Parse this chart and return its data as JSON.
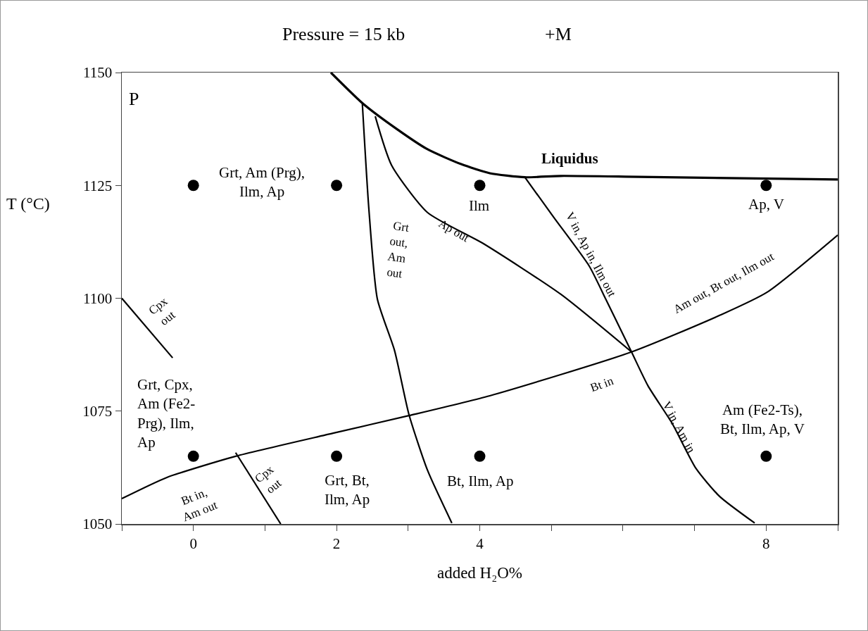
{
  "chart_data": {
    "type": "scatter",
    "title": "Pressure = 15 kb",
    "subtitle": "+M",
    "xlabel": "added H₂O%",
    "ylabel": "T (°C)",
    "xlim": [
      -1,
      9
    ],
    "xticks": [
      {
        "value": -1,
        "label": null
      },
      0,
      {
        "value": 1,
        "label": null
      },
      2,
      {
        "value": 3,
        "label": null
      },
      4,
      {
        "value": 5,
        "label": null
      },
      {
        "value": 6,
        "label": null
      },
      {
        "value": 7,
        "label": null
      },
      8,
      {
        "value": 9,
        "label": null
      }
    ],
    "ylim": [
      1050,
      1150
    ],
    "yticks": [
      1050,
      1075,
      1100,
      1125,
      1150
    ],
    "grid": false,
    "series": [
      {
        "type": "scatter",
        "marker": "circle",
        "color": "#000000",
        "x": [
          0,
          2,
          4,
          8,
          0,
          2,
          4,
          8
        ],
        "values": [
          1125,
          1125,
          1125,
          1125,
          1065,
          1065,
          1065,
          1065
        ]
      },
      {
        "type": "line",
        "marker": "none",
        "line_style": "solid",
        "color": "#000000",
        "x": [
          1.92,
          2.37,
          2.84,
          3.27,
          3.74,
          4.14,
          4.63,
          5.13,
          6.22,
          9
        ],
        "values": [
          1150,
          1143.1,
          1137.5,
          1133.0,
          1129.7,
          1127.7,
          1126.8,
          1127.1,
          1126.9,
          1126.3
        ]
      },
      {
        "type": "line",
        "marker": "none",
        "line_style": "solid",
        "color": "#000000",
        "x": [
          2.36,
          2.45,
          2.57,
          2.81,
          3.01,
          3.27,
          3.61
        ],
        "values": [
          1143.1,
          1120,
          1099.8,
          1088.4,
          1074.3,
          1061.9,
          1050.2
        ]
      },
      {
        "type": "line",
        "marker": "none",
        "line_style": "solid",
        "color": "#000000",
        "x": [
          2.54,
          2.77,
          3.27,
          4.04,
          5.13,
          6.12
        ],
        "values": [
          1140.3,
          1129.4,
          1119,
          1112.2,
          1100.9,
          1088.1
        ]
      },
      {
        "type": "line",
        "marker": "none",
        "line_style": "solid",
        "color": "#000000",
        "x": [
          4.63,
          5.03,
          5.53,
          5.76,
          6.12,
          6.35,
          6.69,
          7.02,
          7.35,
          7.84
        ],
        "values": [
          1126.8,
          1118,
          1107.1,
          1099.8,
          1088.1,
          1080.6,
          1072.2,
          1062.3,
          1056.1,
          1050.2
        ]
      },
      {
        "type": "line",
        "marker": "none",
        "line_style": "solid",
        "color": "#000000",
        "x": [
          -1,
          -0.37,
          0.59,
          1.95,
          3.01,
          4.14,
          6.12,
          7.35,
          8.01,
          9
        ],
        "values": [
          1055.6,
          1060.3,
          1065,
          1070.1,
          1074,
          1078.4,
          1088.1,
          1096.2,
          1101.3,
          1114
        ]
      },
      {
        "type": "line",
        "marker": "none",
        "line_style": "solid",
        "color": "#000000",
        "x": [
          -1,
          -0.29
        ],
        "values": [
          1100,
          1086.8
        ]
      },
      {
        "type": "line",
        "marker": "none",
        "line_style": "solid",
        "color": "#000000",
        "x": [
          0.59,
          1.22
        ],
        "values": [
          1065.8,
          1050
        ]
      }
    ],
    "annotations": [
      "P",
      "Grt, Am (Prg),\nIlm, Ap",
      "Ilm",
      "Liquidus",
      "Ap, V",
      "Grt\nout,\nAm\nout",
      "Ap out",
      "V in, Ap in, Ilm out",
      "Am out, Bt out, Ilm out",
      "Bt in",
      "V in, Am in",
      "Am (Fe2-Ts),\nBt, Ilm, Ap, V",
      "Grt, Cpx,\nAm (Fe2-\nPrg), Ilm,\nAp",
      "Cpx\nout",
      "Bt in,\nAm out",
      "Cpx\nout",
      "Grt, Bt,\nIlm, Ap",
      "Bt, Ilm, Ap"
    ]
  }
}
